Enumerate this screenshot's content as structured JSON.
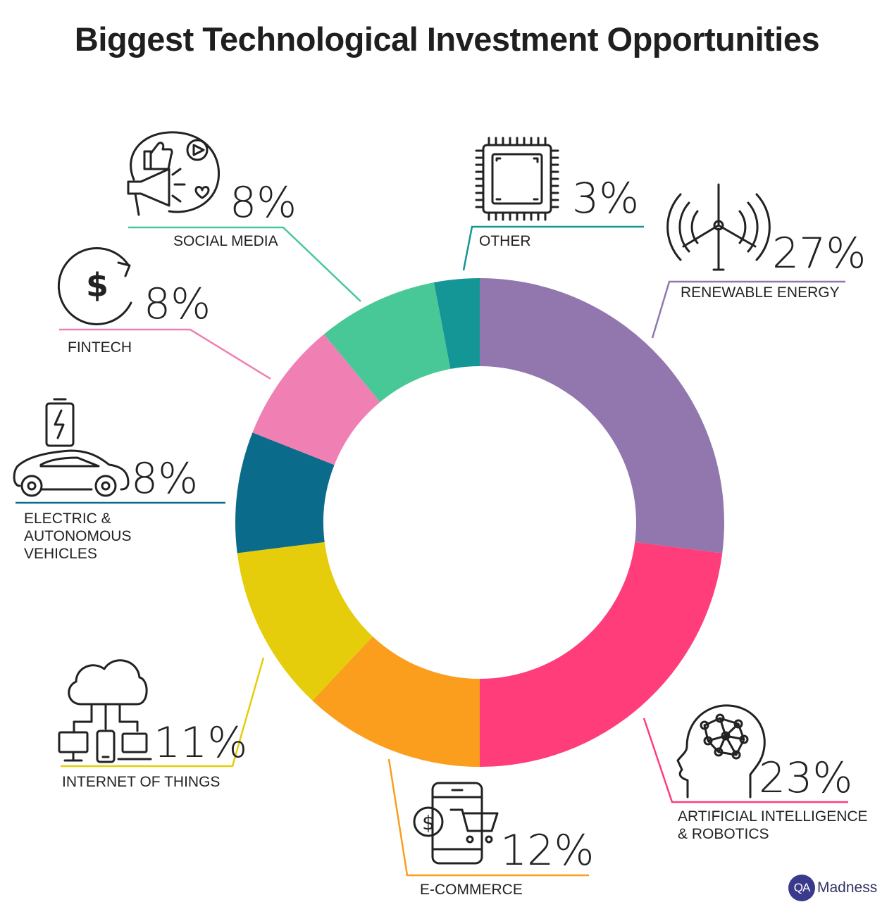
{
  "title": "Biggest Technological Investment Opportunities",
  "brand": {
    "badge": "QA",
    "name": "Madness"
  },
  "chart_data": {
    "type": "pie",
    "variant": "donut",
    "title": "Biggest Technological Investment Opportunities",
    "unit": "%",
    "slices": [
      {
        "label": "RENEWABLE ENERGY",
        "value": 27,
        "display": "27%",
        "color": "#9177ad",
        "icon": "wind-turbine-icon"
      },
      {
        "label": "ARTIFICIAL INTELLIGENCE & ROBOTICS",
        "value": 23,
        "display": "23%",
        "color": "#fe3d7a",
        "icon": "ai-brain-head-icon"
      },
      {
        "label": "E-COMMERCE",
        "value": 12,
        "display": "12%",
        "color": "#fb9e1d",
        "icon": "mobile-shopping-cart-icon"
      },
      {
        "label": "INTERNET OF THINGS",
        "value": 11,
        "display": "11%",
        "color": "#e5cd0b",
        "icon": "cloud-devices-icon"
      },
      {
        "label": "ELECTRIC & AUTONOMOUS VEHICLES",
        "value": 8,
        "display": "8%",
        "color": "#0b6b8a",
        "icon": "electric-car-icon"
      },
      {
        "label": "FINTECH",
        "value": 8,
        "display": "8%",
        "color": "#f07fb3",
        "icon": "dollar-cycle-icon"
      },
      {
        "label": "SOCIAL MEDIA",
        "value": 8,
        "display": "8%",
        "color": "#49c897",
        "icon": "social-media-icon"
      },
      {
        "label": "OTHER",
        "value": 3,
        "display": "3%",
        "color": "#149596",
        "icon": "microchip-icon"
      }
    ]
  }
}
